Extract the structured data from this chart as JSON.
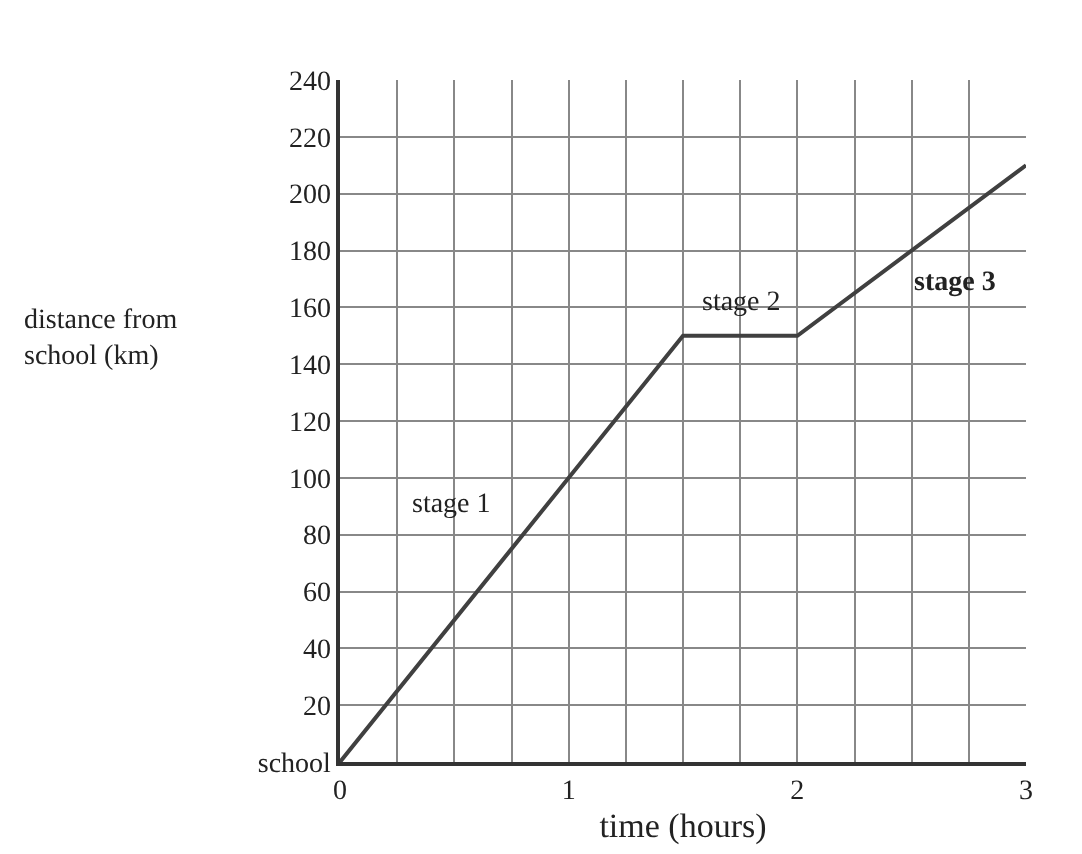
{
  "chart_data": {
    "type": "line",
    "xlabel": "time (hours)",
    "ylabel": "distance from\nschool (km)",
    "x": [
      0,
      1.5,
      2,
      3
    ],
    "series": [
      {
        "color": "#404040",
        "values": [
          0,
          150,
          150,
          210
        ]
      }
    ],
    "xlim": [
      0,
      3
    ],
    "ylim": [
      0,
      240
    ],
    "xticks": [
      0,
      {
        "value": 0.25,
        "label": null
      },
      {
        "value": 0.5,
        "label": null
      },
      {
        "value": 0.75,
        "label": null
      },
      1,
      {
        "value": 1.25,
        "label": null
      },
      {
        "value": 1.5,
        "label": null
      },
      {
        "value": 1.75,
        "label": null
      },
      2,
      {
        "value": 2.25,
        "label": null
      },
      {
        "value": 2.5,
        "label": null
      },
      {
        "value": 2.75,
        "label": null
      },
      3
    ],
    "yticks": [
      {
        "value": 0,
        "label": "school"
      },
      20,
      40,
      60,
      80,
      100,
      120,
      140,
      160,
      180,
      200,
      220,
      240
    ],
    "grid": true,
    "marker": "none",
    "line_style": "solid",
    "annotations": [
      "stage 1",
      "stage 2",
      "stage 3"
    ]
  }
}
